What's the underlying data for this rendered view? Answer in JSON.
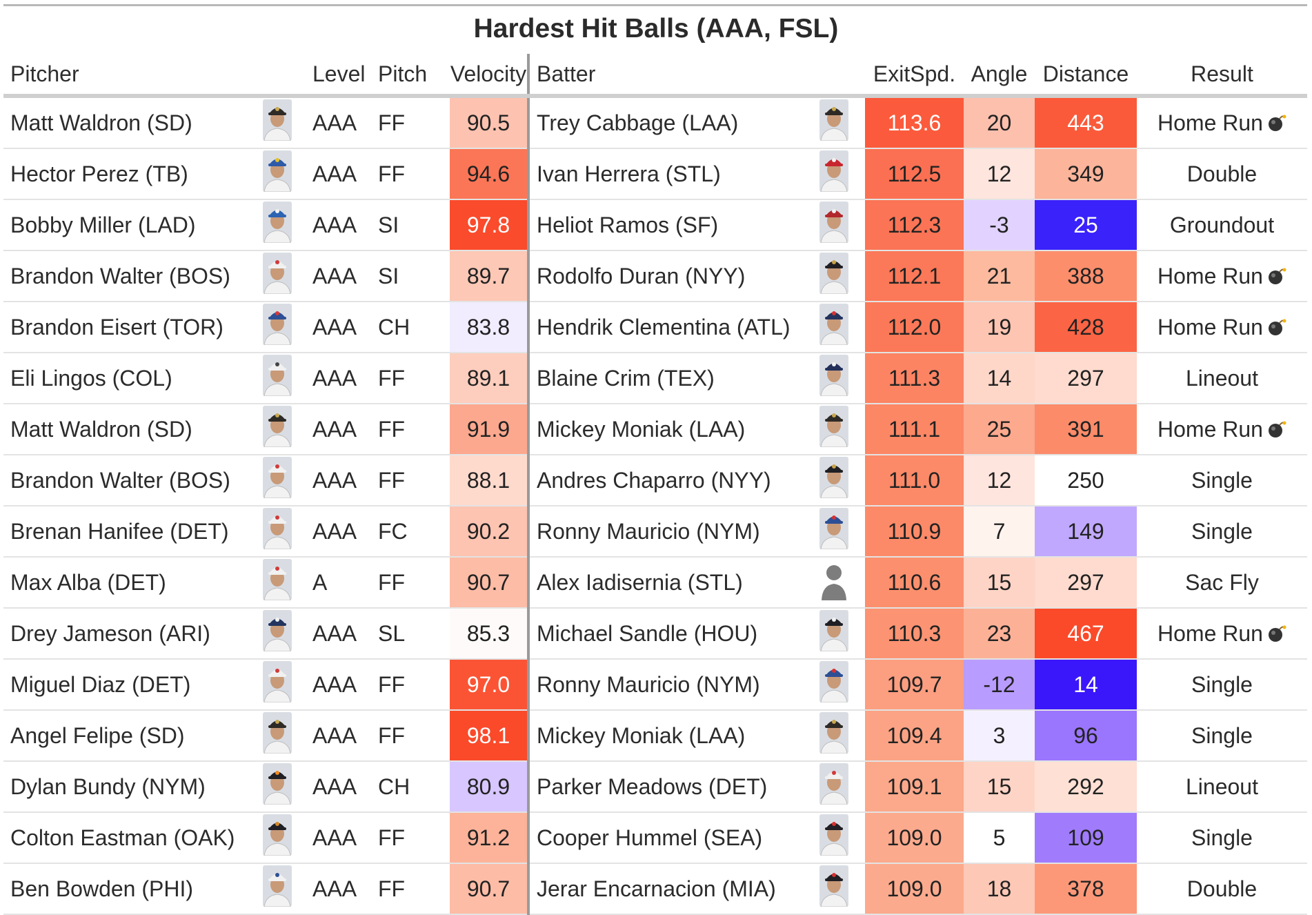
{
  "title": "Hardest Hit Balls (AAA, FSL)",
  "columns": {
    "pitcher": "Pitcher",
    "level": "Level",
    "pitch": "Pitch",
    "velocity": "Velocity",
    "batter": "Batter",
    "exitspd": "ExitSpd.",
    "angle": "Angle",
    "distance": "Distance",
    "result": "Result"
  },
  "colors": {
    "header_rule": "#cfcfcf",
    "divider": "#9a9a9a",
    "hot_max": "#fc4a2a",
    "cool_max": "#3a17ff"
  },
  "icons": {
    "home_run": "bomb-icon",
    "player": "headshot-icon"
  },
  "rows": [
    {
      "pitcher": "Matt Waldron (SD)",
      "pitcher_cap": "#2e2a26",
      "pitcher_logo": "#c9a84f",
      "level": "AAA",
      "pitch": "FF",
      "velocity": "90.5",
      "velocity_color": "#fdc3b0",
      "batter": "Trey Cabbage (LAA)",
      "batter_cap": "#2e2a26",
      "batter_logo": "#c9a84f",
      "batter_silhouette": false,
      "exitspd": "113.6",
      "exitspd_color": "#fb5a3c",
      "angle": "20",
      "angle_color": "#fdc0ad",
      "distance": "443",
      "distance_color": "#fb5a3a",
      "result": "Home Run",
      "home_run": true
    },
    {
      "pitcher": "Hector Perez (TB)",
      "pitcher_cap": "#2e5aa8",
      "pitcher_logo": "#e6c12b",
      "level": "AAA",
      "pitch": "FF",
      "velocity": "94.6",
      "velocity_color": "#fb7657",
      "batter": "Ivan Herrera (STL)",
      "batter_cap": "#c8262e",
      "batter_logo": "#f2f2f2",
      "batter_silhouette": false,
      "exitspd": "112.5",
      "exitspd_color": "#fb7052",
      "angle": "12",
      "angle_color": "#fee5dd",
      "distance": "349",
      "distance_color": "#fcb49b",
      "result": "Double",
      "home_run": false
    },
    {
      "pitcher": "Bobby Miller (LAD)",
      "pitcher_cap": "#2c63b3",
      "pitcher_logo": "#f2f2f2",
      "level": "AAA",
      "pitch": "SI",
      "velocity": "97.8",
      "velocity_color": "#fa4b2c",
      "batter": "Heliot Ramos (SF)",
      "batter_cap": "#b3282c",
      "batter_logo": "#f2f2f2",
      "batter_silhouette": false,
      "exitspd": "112.3",
      "exitspd_color": "#fb7455",
      "angle": "-3",
      "angle_color": "#e2d2ff",
      "distance": "25",
      "distance_color": "#3a22fb",
      "result": "Groundout",
      "home_run": false
    },
    {
      "pitcher": "Brandon Walter (BOS)",
      "pitcher_cap": "#f1f1f1",
      "pitcher_logo": "#d23a3a",
      "level": "AAA",
      "pitch": "SI",
      "velocity": "89.7",
      "velocity_color": "#fdc8b6",
      "batter": "Rodolfo Duran (NYY)",
      "batter_cap": "#1f1f24",
      "batter_logo": "#c7a24a",
      "batter_silhouette": false,
      "exitspd": "112.1",
      "exitspd_color": "#fb7858",
      "angle": "21",
      "angle_color": "#fdba9f",
      "distance": "388",
      "distance_color": "#fc8e6c",
      "result": "Home Run",
      "home_run": true
    },
    {
      "pitcher": "Brandon Eisert (TOR)",
      "pitcher_cap": "#2d4f95",
      "pitcher_logo": "#d33a3a",
      "level": "AAA",
      "pitch": "CH",
      "velocity": "83.8",
      "velocity_color": "#f1edff",
      "batter": "Hendrik Clementina (ATL)",
      "batter_cap": "#24335d",
      "batter_logo": "#d63232",
      "batter_silhouette": false,
      "exitspd": "112.0",
      "exitspd_color": "#fb7958",
      "angle": "19",
      "angle_color": "#fdc5b2",
      "distance": "428",
      "distance_color": "#fb6444",
      "result": "Home Run",
      "home_run": true
    },
    {
      "pitcher": "Eli Lingos (COL)",
      "pitcher_cap": "#f1f1f1",
      "pitcher_logo": "#444444",
      "level": "AAA",
      "pitch": "FF",
      "velocity": "89.1",
      "velocity_color": "#fdcdbd",
      "batter": "Blaine Crim (TEX)",
      "batter_cap": "#23305a",
      "batter_logo": "#f2f2f2",
      "batter_silhouette": false,
      "exitspd": "111.3",
      "exitspd_color": "#fc8463",
      "angle": "14",
      "angle_color": "#fed7c9",
      "distance": "297",
      "distance_color": "#fedbce",
      "result": "Lineout",
      "home_run": false
    },
    {
      "pitcher": "Matt Waldron (SD)",
      "pitcher_cap": "#2e2a26",
      "pitcher_logo": "#c9a84f",
      "level": "AAA",
      "pitch": "FF",
      "velocity": "91.9",
      "velocity_color": "#fca88e",
      "batter": "Mickey Moniak (LAA)",
      "batter_cap": "#2e2a26",
      "batter_logo": "#c9a84f",
      "batter_silhouette": false,
      "exitspd": "111.1",
      "exitspd_color": "#fc8765",
      "angle": "25",
      "angle_color": "#fca98e",
      "distance": "391",
      "distance_color": "#fc8b69",
      "result": "Home Run",
      "home_run": true
    },
    {
      "pitcher": "Brandon Walter (BOS)",
      "pitcher_cap": "#f1f1f1",
      "pitcher_logo": "#d23a3a",
      "level": "AAA",
      "pitch": "FF",
      "velocity": "88.1",
      "velocity_color": "#fedacd",
      "batter": "Andres Chaparro (NYY)",
      "batter_cap": "#1f1f24",
      "batter_logo": "#c7a24a",
      "batter_silhouette": false,
      "exitspd": "111.0",
      "exitspd_color": "#fc8967",
      "angle": "12",
      "angle_color": "#fee5dd",
      "distance": "250",
      "distance_color": "#ffffff",
      "result": "Single",
      "home_run": false
    },
    {
      "pitcher": "Brenan Hanifee (DET)",
      "pitcher_cap": "#f1f1f1",
      "pitcher_logo": "#d23a3a",
      "level": "AAA",
      "pitch": "FC",
      "velocity": "90.2",
      "velocity_color": "#fdc4b1",
      "batter": "Ronny Mauricio (NYM)",
      "batter_cap": "#2d4f95",
      "batter_logo": "#d63232",
      "batter_silhouette": false,
      "exitspd": "110.9",
      "exitspd_color": "#fc8a68",
      "angle": "7",
      "angle_color": "#fff3ee",
      "distance": "149",
      "distance_color": "#c0a8ff",
      "result": "Single",
      "home_run": false
    },
    {
      "pitcher": "Max Alba (DET)",
      "pitcher_cap": "#f1f1f1",
      "pitcher_logo": "#d23a3a",
      "level": "A",
      "pitch": "FF",
      "velocity": "90.7",
      "velocity_color": "#fdbca6",
      "batter": "Alex Iadisernia (STL)",
      "batter_cap": "#8a8a8a",
      "batter_logo": "#8a8a8a",
      "batter_silhouette": true,
      "exitspd": "110.6",
      "exitspd_color": "#fc8f6d",
      "angle": "15",
      "angle_color": "#fed4c6",
      "distance": "297",
      "distance_color": "#fedbce",
      "result": "Sac Fly",
      "home_run": false
    },
    {
      "pitcher": "Drey Jameson (ARI)",
      "pitcher_cap": "#22345f",
      "pitcher_logo": "#f2f2f2",
      "level": "AAA",
      "pitch": "SL",
      "velocity": "85.3",
      "velocity_color": "#fdfaf9",
      "batter": "Michael Sandle (HOU)",
      "batter_cap": "#1f1f24",
      "batter_logo": "#f2f2f2",
      "batter_silhouette": false,
      "exitspd": "110.3",
      "exitspd_color": "#fc9372",
      "angle": "23",
      "angle_color": "#fcb197",
      "distance": "467",
      "distance_color": "#fa4a2a",
      "result": "Home Run",
      "home_run": true
    },
    {
      "pitcher": "Miguel Diaz (DET)",
      "pitcher_cap": "#f1f1f1",
      "pitcher_logo": "#d23a3a",
      "level": "AAA",
      "pitch": "FF",
      "velocity": "97.0",
      "velocity_color": "#fb5434",
      "batter": "Ronny Mauricio (NYM)",
      "batter_cap": "#2d4f95",
      "batter_logo": "#d63232",
      "batter_silhouette": false,
      "exitspd": "109.7",
      "exitspd_color": "#fc9e80",
      "angle": "-12",
      "angle_color": "#b99cff",
      "distance": "14",
      "distance_color": "#3a17fb",
      "result": "Single",
      "home_run": false
    },
    {
      "pitcher": "Angel Felipe (SD)",
      "pitcher_cap": "#2e2a26",
      "pitcher_logo": "#c9a84f",
      "level": "AAA",
      "pitch": "FF",
      "velocity": "98.1",
      "velocity_color": "#fa4a2a",
      "batter": "Mickey Moniak (LAA)",
      "batter_cap": "#2e2a26",
      "batter_logo": "#c9a84f",
      "batter_silhouette": false,
      "exitspd": "109.4",
      "exitspd_color": "#fca385",
      "angle": "3",
      "angle_color": "#f5f0ff",
      "distance": "96",
      "distance_color": "#9a75fd",
      "result": "Single",
      "home_run": false
    },
    {
      "pitcher": "Dylan Bundy (NYM)",
      "pitcher_cap": "#1f1f24",
      "pitcher_logo": "#f08a24",
      "level": "AAA",
      "pitch": "CH",
      "velocity": "80.9",
      "velocity_color": "#d7c6ff",
      "batter": "Parker Meadows (DET)",
      "batter_cap": "#f1f1f1",
      "batter_logo": "#d23a3a",
      "batter_silhouette": false,
      "exitspd": "109.1",
      "exitspd_color": "#fca88b",
      "angle": "15",
      "angle_color": "#fed4c6",
      "distance": "292",
      "distance_color": "#fee0d5",
      "result": "Lineout",
      "home_run": false
    },
    {
      "pitcher": "Colton Eastman (OAK)",
      "pitcher_cap": "#1f1f24",
      "pitcher_logo": "#d68a28",
      "level": "AAA",
      "pitch": "FF",
      "velocity": "91.2",
      "velocity_color": "#fcb39a",
      "batter": "Cooper Hummel (SEA)",
      "batter_cap": "#1f1f24",
      "batter_logo": "#d63232",
      "batter_silhouette": false,
      "exitspd": "109.0",
      "exitspd_color": "#fcaa8d",
      "angle": "5",
      "angle_color": "#ffffff",
      "distance": "109",
      "distance_color": "#a07cfd",
      "result": "Single",
      "home_run": false
    },
    {
      "pitcher": "Ben Bowden (PHI)",
      "pitcher_cap": "#f1f1f1",
      "pitcher_logo": "#2d4f95",
      "level": "AAA",
      "pitch": "FF",
      "velocity": "90.7",
      "velocity_color": "#fdbca6",
      "batter": "Jerar Encarnacion (MIA)",
      "batter_cap": "#1f1f24",
      "batter_logo": "#d63232",
      "batter_silhouette": false,
      "exitspd": "109.0",
      "exitspd_color": "#fcaa8d",
      "angle": "18",
      "angle_color": "#fdc8b6",
      "distance": "378",
      "distance_color": "#fc9878",
      "result": "Double",
      "home_run": false
    }
  ]
}
